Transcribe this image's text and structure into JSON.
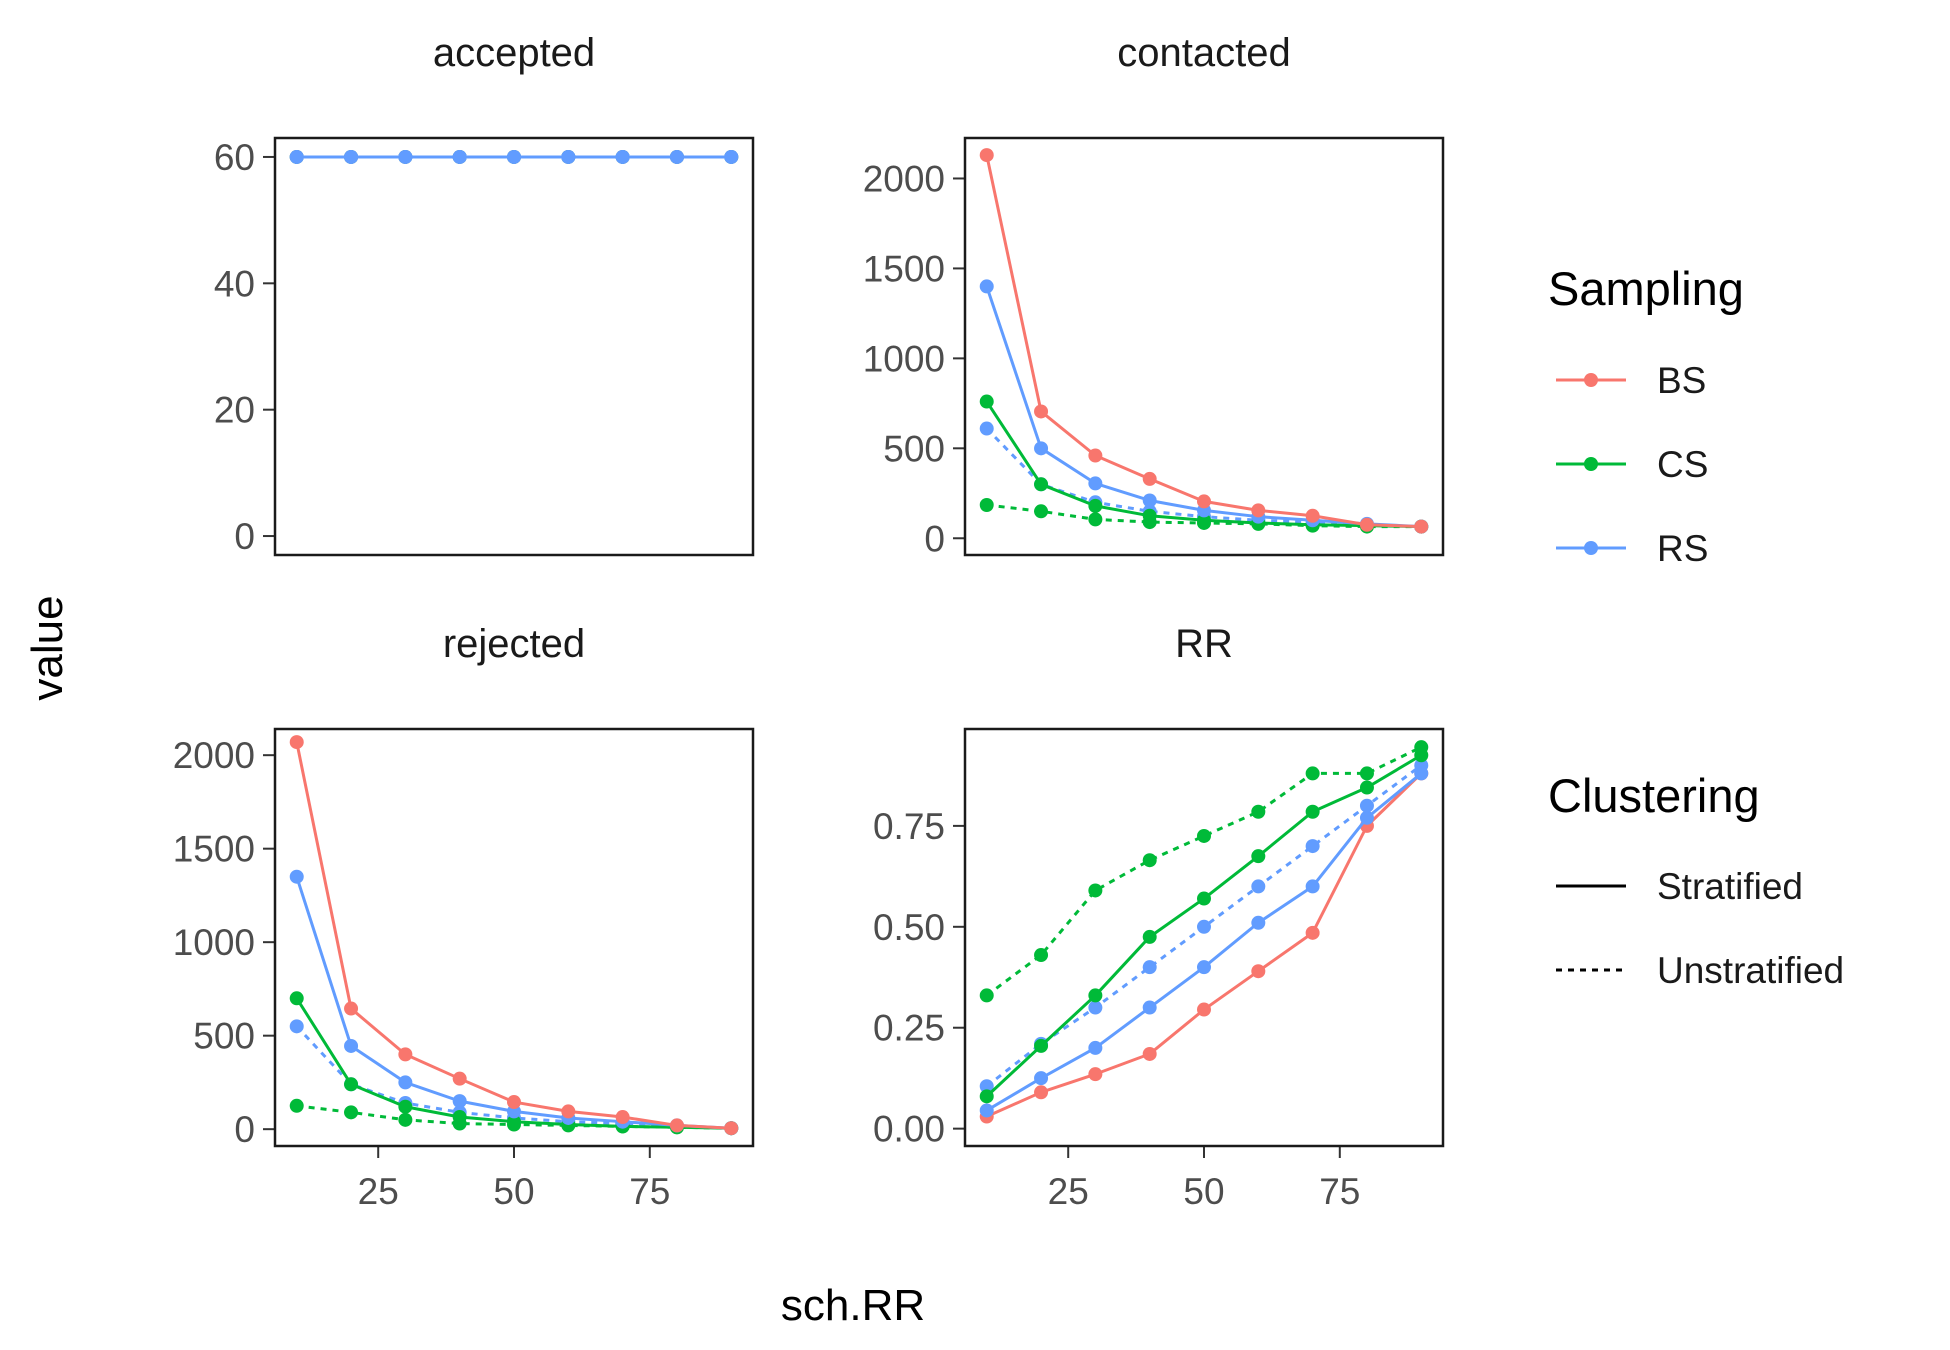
{
  "chart_data": {
    "type": "line",
    "x_label": "sch.RR",
    "y_label": "value",
    "x": [
      10,
      20,
      30,
      40,
      50,
      60,
      70,
      80,
      90
    ],
    "colors": {
      "BS": "#F8766D",
      "CS": "#00BA38",
      "RS": "#619CFF"
    },
    "legend": {
      "sampling": {
        "title": "Sampling",
        "items": [
          "BS",
          "CS",
          "RS"
        ]
      },
      "clustering": {
        "title": "Clustering",
        "items": [
          "Stratified",
          "Unstratified"
        ]
      }
    },
    "panels": [
      {
        "key": "accepted",
        "title": "accepted",
        "show_x": false,
        "ylim": [
          -3,
          63
        ],
        "yticks": [
          0,
          20,
          40,
          60
        ],
        "ytick_labels": [
          "0",
          "20",
          "40",
          "60"
        ],
        "series": [
          {
            "sampling": "BS",
            "clustering": "Stratified",
            "values": [
              60,
              60,
              60,
              60,
              60,
              60,
              60,
              60,
              60
            ]
          },
          {
            "sampling": "CS",
            "clustering": "Stratified",
            "values": [
              60,
              60,
              60,
              60,
              60,
              60,
              60,
              60,
              60
            ]
          },
          {
            "sampling": "RS",
            "clustering": "Unstratified",
            "values": [
              60,
              60,
              60,
              60,
              60,
              60,
              60,
              60,
              60
            ]
          },
          {
            "sampling": "RS",
            "clustering": "Stratified",
            "values": [
              60,
              60,
              60,
              60,
              60,
              60,
              60,
              60,
              60
            ]
          }
        ]
      },
      {
        "key": "contacted",
        "title": "contacted",
        "show_x": false,
        "ylim": [
          -93,
          2225
        ],
        "yticks": [
          0,
          500,
          1000,
          1500,
          2000
        ],
        "ytick_labels": [
          "0",
          "500",
          "1000",
          "1500",
          "2000"
        ],
        "series": [
          {
            "sampling": "CS",
            "clustering": "Unstratified",
            "values": [
              185,
              150,
              105,
              90,
              85,
              80,
              70,
              65,
              65
            ]
          },
          {
            "sampling": "RS",
            "clustering": "Unstratified",
            "values": [
              610,
              300,
              200,
              150,
              120,
              100,
              90,
              75,
              65
            ]
          },
          {
            "sampling": "CS",
            "clustering": "Stratified",
            "values": [
              760,
              300,
              180,
              125,
              100,
              85,
              75,
              70,
              65
            ]
          },
          {
            "sampling": "RS",
            "clustering": "Stratified",
            "values": [
              1400,
              500,
              305,
              210,
              155,
              120,
              100,
              80,
              65
            ]
          },
          {
            "sampling": "BS",
            "clustering": "Stratified",
            "values": [
              2130,
              705,
              460,
              330,
              205,
              155,
              125,
              75,
              65
            ]
          }
        ]
      },
      {
        "key": "rejected",
        "title": "rejected",
        "show_x": true,
        "ylim": [
          -90,
          2140
        ],
        "yticks": [
          0,
          500,
          1000,
          1500,
          2000
        ],
        "ytick_labels": [
          "0",
          "500",
          "1000",
          "1500",
          "2000"
        ],
        "xticks": [
          25,
          50,
          75
        ],
        "xtick_labels": [
          "25",
          "50",
          "75"
        ],
        "series": [
          {
            "sampling": "CS",
            "clustering": "Unstratified",
            "values": [
              125,
              90,
              50,
              30,
              25,
              20,
              15,
              10,
              5
            ]
          },
          {
            "sampling": "RS",
            "clustering": "Unstratified",
            "values": [
              550,
              240,
              140,
              90,
              60,
              40,
              30,
              15,
              5
            ]
          },
          {
            "sampling": "CS",
            "clustering": "Stratified",
            "values": [
              700,
              240,
              120,
              65,
              40,
              25,
              15,
              10,
              5
            ]
          },
          {
            "sampling": "RS",
            "clustering": "Stratified",
            "values": [
              1350,
              445,
              250,
              150,
              95,
              60,
              40,
              20,
              5
            ]
          },
          {
            "sampling": "BS",
            "clustering": "Stratified",
            "values": [
              2070,
              645,
              400,
              270,
              145,
              95,
              65,
              20,
              5
            ]
          }
        ]
      },
      {
        "key": "RR",
        "title": "RR",
        "show_x": true,
        "ylim": [
          -0.043,
          0.99
        ],
        "yticks": [
          0,
          0.25,
          0.5,
          0.75
        ],
        "ytick_labels": [
          "0.00",
          "0.25",
          "0.50",
          "0.75"
        ],
        "xticks": [
          25,
          50,
          75
        ],
        "xtick_labels": [
          "25",
          "50",
          "75"
        ],
        "series": [
          {
            "sampling": "BS",
            "clustering": "Stratified",
            "values": [
              0.03,
              0.09,
              0.135,
              0.185,
              0.295,
              0.39,
              0.485,
              0.75,
              0.88
            ]
          },
          {
            "sampling": "RS",
            "clustering": "Stratified",
            "values": [
              0.045,
              0.125,
              0.2,
              0.3,
              0.4,
              0.51,
              0.6,
              0.77,
              0.88
            ]
          },
          {
            "sampling": "RS",
            "clustering": "Unstratified",
            "values": [
              0.105,
              0.21,
              0.3,
              0.4,
              0.5,
              0.6,
              0.7,
              0.8,
              0.9
            ]
          },
          {
            "sampling": "CS",
            "clustering": "Stratified",
            "values": [
              0.08,
              0.205,
              0.33,
              0.475,
              0.57,
              0.675,
              0.785,
              0.845,
              0.925
            ]
          },
          {
            "sampling": "CS",
            "clustering": "Unstratified",
            "values": [
              0.33,
              0.43,
              0.59,
              0.665,
              0.725,
              0.785,
              0.88,
              0.88,
              0.945
            ]
          }
        ]
      }
    ]
  }
}
